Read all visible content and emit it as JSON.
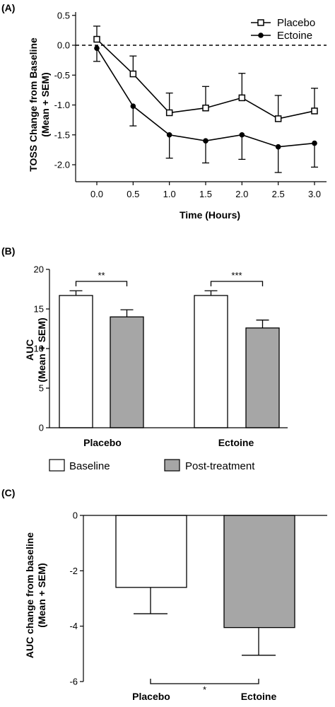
{
  "chart_data": [
    {
      "panel_label": "(A)",
      "type": "line",
      "xlabel": "Time (Hours)",
      "ylabel": [
        "TOSS Change from Baseline",
        "(Mean + SEM)"
      ],
      "x": [
        0.0,
        0.5,
        1.0,
        1.5,
        2.0,
        2.5,
        3.0
      ],
      "x_ticks": [
        "0.0",
        "0.5",
        "1.0",
        "1.5",
        "2.0",
        "2.5",
        "3.0"
      ],
      "y_ticks": [
        "0.5",
        "0.0",
        "-0.5",
        "-1.0",
        "-1.5",
        "-2.0"
      ],
      "xlim": [
        -0.2,
        3.2
      ],
      "ylim": [
        -2.45,
        0.55
      ],
      "reference_line": 0.0,
      "legend_position": "top-right",
      "series": [
        {
          "name": "Placebo",
          "marker": "open-square",
          "values": [
            0.1,
            -0.48,
            -1.13,
            -1.05,
            -0.88,
            -1.23,
            -1.1
          ],
          "sem": [
            0.22,
            0.3,
            0.33,
            0.36,
            0.41,
            0.39,
            0.38
          ]
        },
        {
          "name": "Ectoine",
          "marker": "filled-circle",
          "values": [
            -0.05,
            -1.02,
            -1.5,
            -1.6,
            -1.5,
            -1.7,
            -1.64
          ],
          "sem": [
            0.22,
            0.33,
            0.39,
            0.37,
            0.41,
            0.43,
            0.4
          ]
        }
      ]
    },
    {
      "panel_label": "(B)",
      "type": "bar",
      "ylabel": [
        "AUC",
        "(Mean + SEM)"
      ],
      "categories": [
        "Placebo",
        "Ectoine"
      ],
      "y_ticks": [
        "20",
        "15",
        "10",
        "5",
        "0"
      ],
      "ylim": [
        0,
        20
      ],
      "legend_position": "bottom",
      "series": [
        {
          "name": "Baseline",
          "color": "#ffffff",
          "values": [
            16.7,
            16.7
          ],
          "sem": [
            0.6,
            0.6
          ]
        },
        {
          "name": "Post-treatment",
          "color": "#a6a6a6",
          "values": [
            14.0,
            12.6
          ],
          "sem": [
            0.9,
            1.0
          ]
        }
      ],
      "significance": [
        "**",
        "***"
      ]
    },
    {
      "panel_label": "(C)",
      "type": "bar",
      "ylabel": [
        "AUC change from baseline",
        "(Mean + SEM)"
      ],
      "categories": [
        "Placebo",
        "Ectoine"
      ],
      "y_ticks": [
        "0",
        "-2",
        "-4",
        "-6"
      ],
      "ylim": [
        -6,
        0
      ],
      "values": [
        -2.6,
        -4.05
      ],
      "sem": [
        0.95,
        1.0
      ],
      "colors": [
        "#ffffff",
        "#a6a6a6"
      ],
      "significance": "*"
    }
  ]
}
